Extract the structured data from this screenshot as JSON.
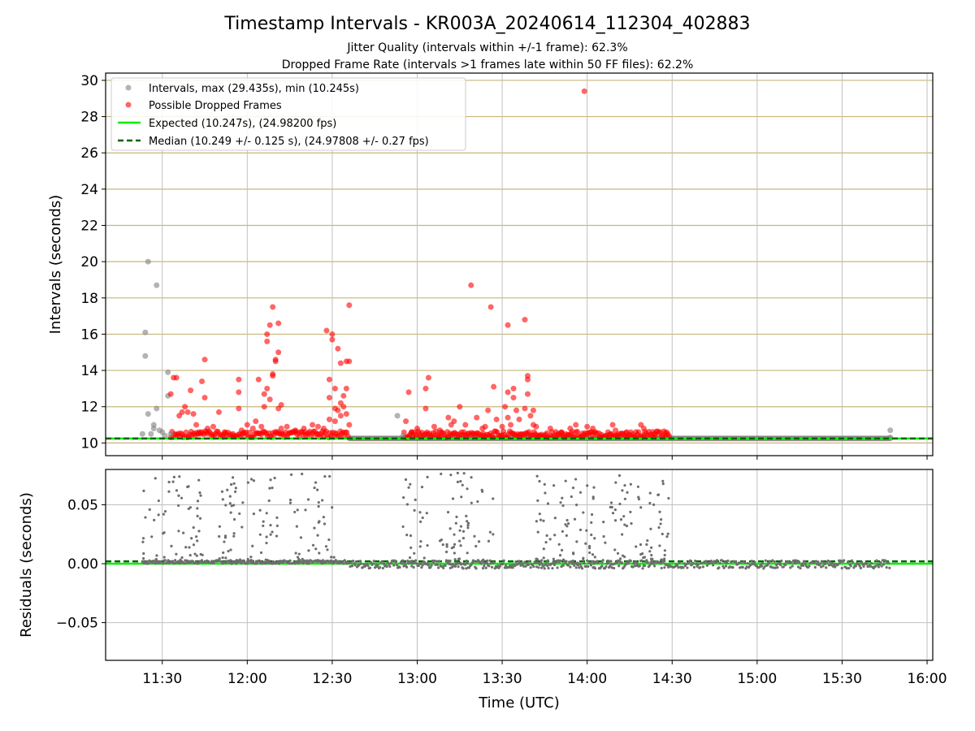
{
  "figure": {
    "title": "Timestamp Intervals - KR003A_20240614_112304_402883",
    "subtitle_1": "Jitter Quality (intervals within +/-1 frame): 62.3%",
    "subtitle_2": "Dropped Frame Rate (intervals >1 frames late within 50 FF files): 62.2%"
  },
  "chart_data": [
    {
      "type": "scatter",
      "ylabel": "Intervals (seconds)",
      "xlabel": "",
      "xlim": [
        "11:10",
        "16:02"
      ],
      "ylim": [
        9.3,
        30.4
      ],
      "yticks": [
        10,
        12,
        14,
        16,
        18,
        20,
        22,
        24,
        26,
        28,
        30
      ],
      "xticks": [
        "11:30",
        "12:00",
        "12:30",
        "13:00",
        "13:30",
        "14:00",
        "14:30",
        "15:00",
        "15:30",
        "16:00"
      ],
      "horizontal_grid_color": "#c8b67a",
      "vertical_grid_color": "#c0c0c0",
      "legend_position": "upper-left",
      "legend": [
        {
          "label": "Intervals, max (29.435s), min (10.245s)",
          "marker": "circle",
          "color": "#808080"
        },
        {
          "label": "Possible Dropped Frames",
          "marker": "circle",
          "color": "#ff0000"
        },
        {
          "label": "Expected (10.247s), (24.98200 fps)",
          "marker": "solid-line",
          "color": "#00ee00"
        },
        {
          "label": "Median (10.249 +/- 0.125 s), (24.97808 +/- 0.27 fps)",
          "marker": "dashed-line",
          "color": "#006400"
        }
      ],
      "expected_value": 10.247,
      "median_value": 10.249,
      "series": [
        {
          "name": "Intervals, max (29.435s), min (10.245s)",
          "color": "#808080",
          "points": [
            [
              "11:23",
              10.5
            ],
            [
              "11:24",
              16.1
            ],
            [
              "11:24",
              14.8
            ],
            [
              "11:25",
              20.0
            ],
            [
              "11:25",
              11.6
            ],
            [
              "11:26",
              10.5
            ],
            [
              "11:27",
              11.0
            ],
            [
              "11:27",
              10.8
            ],
            [
              "11:28",
              18.7
            ],
            [
              "11:28",
              11.9
            ],
            [
              "11:29",
              10.7
            ],
            [
              "11:30",
              10.6
            ],
            [
              "11:31",
              10.4
            ],
            [
              "11:32",
              12.6
            ],
            [
              "11:32",
              13.9
            ],
            [
              "11:33",
              10.5
            ],
            [
              "12:53",
              11.5
            ],
            [
              "12:55",
              10.4
            ],
            [
              "15:47",
              10.7
            ],
            [
              "15:47",
              10.3
            ]
          ],
          "band": {
            "from": "12:36",
            "to": "15:47",
            "value": 10.25
          }
        },
        {
          "name": "Possible Dropped Frames",
          "color": "#ff0000",
          "points": [
            [
              "11:33",
              12.7
            ],
            [
              "11:34",
              13.6
            ],
            [
              "11:35",
              13.6
            ],
            [
              "11:36",
              11.5
            ],
            [
              "11:37",
              11.7
            ],
            [
              "11:38",
              12.0
            ],
            [
              "11:39",
              11.7
            ],
            [
              "11:40",
              12.9
            ],
            [
              "11:41",
              11.6
            ],
            [
              "11:42",
              11.0
            ],
            [
              "11:43",
              10.6
            ],
            [
              "11:44",
              13.4
            ],
            [
              "11:45",
              14.6
            ],
            [
              "11:45",
              12.5
            ],
            [
              "11:46",
              10.8
            ],
            [
              "11:48",
              10.9
            ],
            [
              "11:50",
              11.7
            ],
            [
              "11:52",
              10.6
            ],
            [
              "11:55",
              10.5
            ],
            [
              "11:57",
              13.5
            ],
            [
              "11:57",
              12.8
            ],
            [
              "11:57",
              11.9
            ],
            [
              "11:58",
              10.7
            ],
            [
              "12:00",
              11.0
            ],
            [
              "12:02",
              10.8
            ],
            [
              "12:03",
              11.2
            ],
            [
              "12:04",
              13.5
            ],
            [
              "12:05",
              10.9
            ],
            [
              "12:06",
              12.0
            ],
            [
              "12:06",
              12.7
            ],
            [
              "12:07",
              15.6
            ],
            [
              "12:07",
              16.0
            ],
            [
              "12:07",
              13.0
            ],
            [
              "12:08",
              16.5
            ],
            [
              "12:08",
              12.4
            ],
            [
              "12:09",
              17.5
            ],
            [
              "12:09",
              13.8
            ],
            [
              "12:09",
              13.7
            ],
            [
              "12:10",
              14.6
            ],
            [
              "12:10",
              14.5
            ],
            [
              "12:11",
              16.6
            ],
            [
              "12:11",
              15.0
            ],
            [
              "12:11",
              11.9
            ],
            [
              "12:12",
              12.1
            ],
            [
              "12:12",
              10.8
            ],
            [
              "12:14",
              10.9
            ],
            [
              "12:17",
              10.7
            ],
            [
              "12:20",
              10.8
            ],
            [
              "12:23",
              11.0
            ],
            [
              "12:25",
              10.9
            ],
            [
              "12:27",
              10.8
            ],
            [
              "12:28",
              16.2
            ],
            [
              "12:29",
              13.5
            ],
            [
              "12:29",
              12.5
            ],
            [
              "12:29",
              11.3
            ],
            [
              "12:30",
              16.0
            ],
            [
              "12:30",
              15.7
            ],
            [
              "12:31",
              13.0
            ],
            [
              "12:31",
              11.9
            ],
            [
              "12:31",
              11.2
            ],
            [
              "12:32",
              11.8
            ],
            [
              "12:32",
              15.2
            ],
            [
              "12:33",
              14.4
            ],
            [
              "12:33",
              12.2
            ],
            [
              "12:33",
              11.5
            ],
            [
              "12:34",
              12.6
            ],
            [
              "12:34",
              12.0
            ],
            [
              "12:35",
              14.5
            ],
            [
              "12:35",
              13.0
            ],
            [
              "12:35",
              11.6
            ],
            [
              "12:36",
              17.6
            ],
            [
              "12:36",
              14.5
            ],
            [
              "12:36",
              11.0
            ],
            [
              "12:56",
              11.2
            ],
            [
              "12:57",
              12.8
            ],
            [
              "12:58",
              10.6
            ],
            [
              "13:00",
              10.8
            ],
            [
              "13:03",
              11.9
            ],
            [
              "13:03",
              13.0
            ],
            [
              "13:04",
              13.6
            ],
            [
              "13:06",
              10.9
            ],
            [
              "13:08",
              10.7
            ],
            [
              "13:11",
              11.4
            ],
            [
              "13:12",
              11.0
            ],
            [
              "13:13",
              11.2
            ],
            [
              "13:15",
              12.0
            ],
            [
              "13:17",
              11.0
            ],
            [
              "13:19",
              18.7
            ],
            [
              "13:21",
              11.4
            ],
            [
              "13:23",
              10.8
            ],
            [
              "13:24",
              10.9
            ],
            [
              "13:25",
              11.8
            ],
            [
              "13:26",
              17.5
            ],
            [
              "13:27",
              13.1
            ],
            [
              "13:28",
              11.3
            ],
            [
              "13:30",
              10.9
            ],
            [
              "13:31",
              12.0
            ],
            [
              "13:32",
              12.8
            ],
            [
              "13:32",
              16.5
            ],
            [
              "13:32",
              11.4
            ],
            [
              "13:33",
              11.0
            ],
            [
              "13:34",
              13.0
            ],
            [
              "13:34",
              12.5
            ],
            [
              "13:35",
              11.8
            ],
            [
              "13:36",
              11.3
            ],
            [
              "13:38",
              16.8
            ],
            [
              "13:38",
              11.9
            ],
            [
              "13:39",
              13.7
            ],
            [
              "13:39",
              13.5
            ],
            [
              "13:39",
              12.7
            ],
            [
              "13:40",
              11.5
            ],
            [
              "13:41",
              11.8
            ],
            [
              "13:41",
              11.0
            ],
            [
              "13:42",
              10.9
            ],
            [
              "13:47",
              10.8
            ],
            [
              "13:51",
              10.6
            ],
            [
              "13:54",
              10.8
            ],
            [
              "13:56",
              11.0
            ],
            [
              "13:59",
              29.4
            ],
            [
              "14:00",
              10.9
            ],
            [
              "14:02",
              10.8
            ],
            [
              "14:09",
              11.0
            ],
            [
              "14:10",
              10.7
            ],
            [
              "14:14",
              10.6
            ],
            [
              "14:19",
              11.0
            ],
            [
              "14:20",
              10.8
            ],
            [
              "14:24",
              10.5
            ],
            [
              "14:28",
              10.4
            ]
          ],
          "band": {
            "from": "11:33",
            "to": "14:29",
            "value": 10.3
          }
        }
      ]
    },
    {
      "type": "scatter",
      "ylabel": "Residuals (seconds)",
      "xlabel": "Time (UTC)",
      "xlim": [
        "11:10",
        "16:02"
      ],
      "ylim": [
        -0.082,
        0.08
      ],
      "yticks": [
        0.05,
        0.0,
        -0.05
      ],
      "ytick_labels": [
        "0.05",
        "0.00",
        "−0.05"
      ],
      "xticks": [
        "11:30",
        "12:00",
        "12:30",
        "13:00",
        "13:30",
        "14:00",
        "14:30",
        "15:00",
        "15:30",
        "16:00"
      ],
      "xtick_labels": [
        "11:30",
        "12:00",
        "12:30",
        "13:00",
        "13:30",
        "14:00",
        "14:30",
        "15:00",
        "15:30",
        "16:00"
      ],
      "grid_color": "#c0c0c0",
      "expected_line": {
        "value": 0.0,
        "color": "#00ee00"
      },
      "median_line": {
        "value": 0.002,
        "color": "#006400"
      },
      "series": [
        {
          "name": "",
          "color": "#6e6e6e",
          "clusters": [
            {
              "from": "11:23",
              "to": "11:45",
              "low": 0.0,
              "high": 0.075
            },
            {
              "from": "11:50",
              "to": "12:12",
              "low": 0.0,
              "high": 0.075
            },
            {
              "from": "12:15",
              "to": "12:31",
              "low": 0.0,
              "high": 0.078
            },
            {
              "from": "12:55",
              "to": "13:04",
              "low": 0.0,
              "high": 0.075
            },
            {
              "from": "13:08",
              "to": "13:27",
              "low": 0.0,
              "high": 0.078
            },
            {
              "from": "13:42",
              "to": "14:00",
              "low": 0.0,
              "high": 0.075
            },
            {
              "from": "14:00",
              "to": "14:29",
              "low": 0.0,
              "high": 0.075
            }
          ],
          "flat": [
            {
              "from": "11:23",
              "to": "12:36",
              "low": 0.0,
              "high": 0.003
            },
            {
              "from": "12:36",
              "to": "15:47",
              "low": -0.004,
              "high": 0.003
            }
          ]
        }
      ]
    }
  ]
}
